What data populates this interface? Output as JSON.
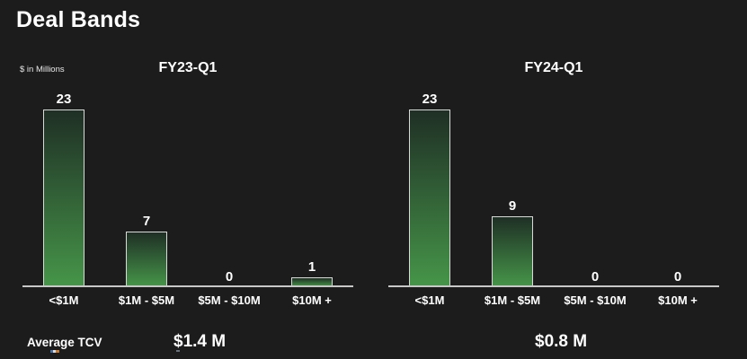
{
  "title": "Deal Bands",
  "units_label": "$ in Millions",
  "colors": {
    "background": "#1c1c1c",
    "text": "#ffffff",
    "bar_gradient_top": "#1f2f25",
    "bar_gradient_bottom": "#469549",
    "bar_border": "#d9d9d9",
    "axis_line": "#c8c8c8"
  },
  "chart_data": [
    {
      "type": "bar",
      "title": "FY23-Q1",
      "categories": [
        "<$1M",
        "$1M - $5M",
        "$5M - $10M",
        "$10M +"
      ],
      "values": [
        23,
        7,
        0,
        1
      ],
      "xlabel": "",
      "ylabel": "",
      "ylim": [
        0,
        23
      ],
      "grid": false,
      "value_labels_shown": true,
      "legend": "none"
    },
    {
      "type": "bar",
      "title": "FY24-Q1",
      "categories": [
        "<$1M",
        "$1M - $5M",
        "$5M - $10M",
        "$10M +"
      ],
      "values": [
        23,
        9,
        0,
        0
      ],
      "xlabel": "",
      "ylabel": "",
      "ylim": [
        0,
        23
      ],
      "grid": false,
      "value_labels_shown": true,
      "legend": "none"
    }
  ],
  "average_tcv": {
    "label": "Average TCV",
    "values": [
      "$1.4 M",
      "$0.8 M"
    ]
  }
}
